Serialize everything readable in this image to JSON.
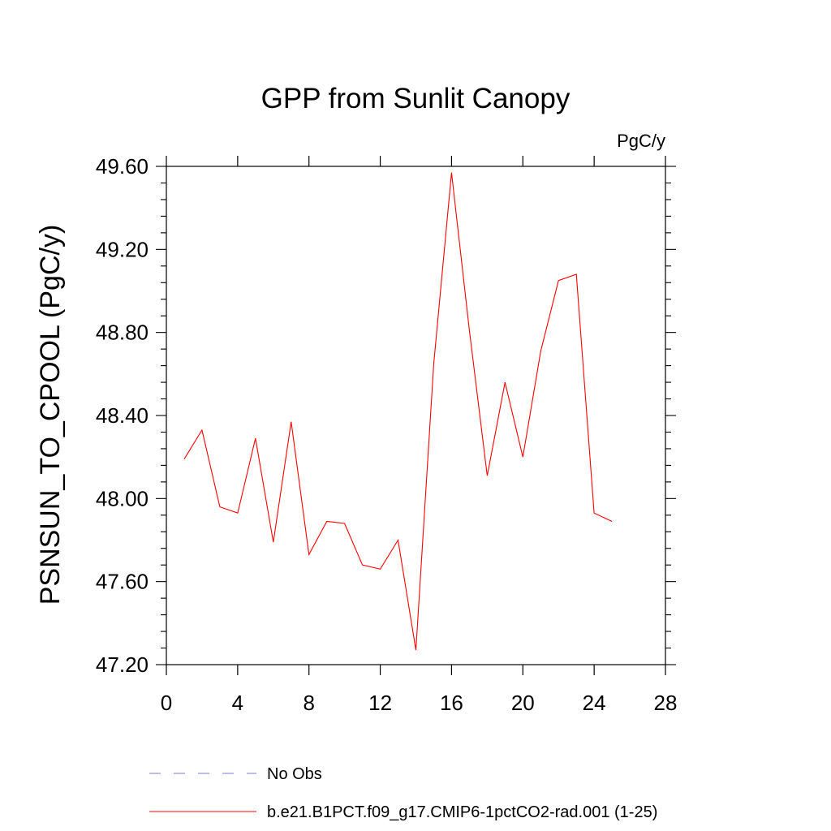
{
  "chart_data": {
    "type": "line",
    "title": "GPP from Sunlit Canopy",
    "units": "PgC/y",
    "ylabel": "PSNSUN_TO_CPOOL  (PgC/y)",
    "xlabel": "",
    "xlim": [
      0,
      28
    ],
    "ylim": [
      47.2,
      49.6
    ],
    "x_ticks": [
      0,
      4,
      8,
      12,
      16,
      20,
      24,
      28
    ],
    "x_tick_labels": [
      "0",
      "4",
      "8",
      "12",
      "16",
      "20",
      "24",
      "28"
    ],
    "y_ticks": [
      47.2,
      47.6,
      48.0,
      48.4,
      48.8,
      49.2,
      49.6
    ],
    "y_tick_labels": [
      "47.20",
      "47.60",
      "48.00",
      "48.40",
      "48.80",
      "49.20",
      "49.60"
    ],
    "grid": false,
    "legend_position": "bottom",
    "series": [
      {
        "name": "No Obs",
        "color": "#7b7bd6",
        "style": "dashed",
        "x": [],
        "y": []
      },
      {
        "name": "b.e21.B1PCT.f09_g17.CMIP6-1pctCO2-rad.001 (1-25)",
        "color": "#ff0000",
        "style": "solid",
        "x": [
          1,
          2,
          3,
          4,
          5,
          6,
          7,
          8,
          9,
          10,
          11,
          12,
          13,
          14,
          15,
          16,
          17,
          18,
          19,
          20,
          21,
          22,
          23,
          24,
          25
        ],
        "y": [
          48.19,
          48.33,
          47.96,
          47.93,
          48.29,
          47.79,
          48.37,
          47.73,
          47.89,
          47.88,
          47.68,
          47.66,
          47.8,
          47.27,
          48.65,
          49.57,
          48.81,
          48.11,
          48.56,
          48.2,
          48.71,
          49.05,
          49.08,
          47.93,
          47.89
        ]
      }
    ]
  }
}
